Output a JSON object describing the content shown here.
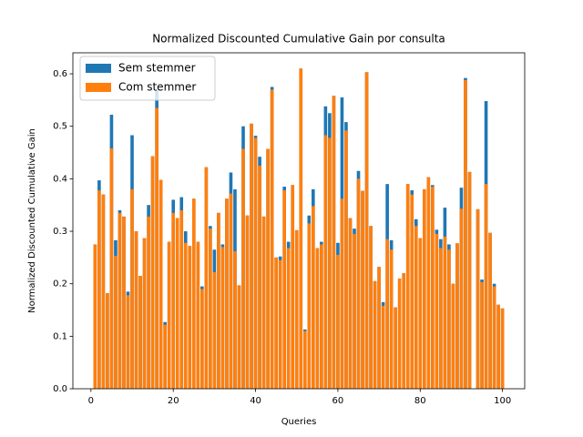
{
  "chart_data": {
    "type": "bar",
    "title": "Normalized Discounted Cumulative Gain por consulta",
    "xlabel": "Queries",
    "ylabel": "Normalized Discounted Cumulative Gain",
    "x": [
      1,
      2,
      3,
      4,
      5,
      6,
      7,
      8,
      9,
      10,
      11,
      12,
      13,
      14,
      15,
      16,
      17,
      18,
      19,
      20,
      21,
      22,
      23,
      24,
      25,
      26,
      27,
      28,
      29,
      30,
      31,
      32,
      33,
      34,
      35,
      36,
      37,
      38,
      39,
      40,
      41,
      42,
      43,
      44,
      45,
      46,
      47,
      48,
      49,
      50,
      51,
      52,
      53,
      54,
      55,
      56,
      57,
      58,
      59,
      60,
      61,
      62,
      63,
      64,
      65,
      66,
      67,
      68,
      69,
      70,
      71,
      72,
      73,
      74,
      75,
      76,
      77,
      78,
      79,
      80,
      81,
      82,
      83,
      84,
      85,
      86,
      87,
      88,
      89,
      90,
      91,
      92,
      93,
      94,
      95,
      96,
      97,
      98,
      99,
      100
    ],
    "series": [
      {
        "name": "Sem stemmer",
        "color": "#1f77b4",
        "values": [
          0.275,
          0.397,
          0.37,
          0.182,
          0.522,
          0.283,
          0.34,
          0.328,
          0.185,
          0.483,
          0.3,
          0.215,
          0.287,
          0.35,
          0.443,
          0.57,
          0.398,
          0.127,
          0.28,
          0.36,
          0.325,
          0.365,
          0.3,
          0.272,
          0.362,
          0.28,
          0.195,
          0.422,
          0.31,
          0.265,
          0.335,
          0.275,
          0.362,
          0.412,
          0.38,
          0.197,
          0.5,
          0.33,
          0.505,
          0.482,
          0.442,
          0.328,
          0.457,
          0.575,
          0.25,
          0.252,
          0.385,
          0.28,
          0.388,
          0.302,
          0.61,
          0.113,
          0.33,
          0.38,
          0.268,
          0.28,
          0.538,
          0.525,
          0.558,
          0.278,
          0.555,
          0.508,
          0.325,
          0.305,
          0.415,
          0.377,
          0.603,
          0.31,
          0.205,
          0.232,
          0.165,
          0.39,
          0.283,
          0.155,
          0.21,
          0.22,
          0.39,
          0.378,
          0.323,
          0.287,
          0.38,
          0.403,
          0.388,
          0.303,
          0.285,
          0.345,
          0.275,
          0.2,
          0.277,
          0.383,
          0.592,
          0.413,
          0,
          0.342,
          0.208,
          0.548,
          0.297,
          0.2,
          0.16,
          0.153
        ]
      },
      {
        "name": "Com stemmer",
        "color": "#ff7f0e",
        "values": [
          0.275,
          0.378,
          0.37,
          0.182,
          0.458,
          0.253,
          0.335,
          0.328,
          0.178,
          0.38,
          0.3,
          0.215,
          0.287,
          0.328,
          0.443,
          0.535,
          0.398,
          0.122,
          0.28,
          0.335,
          0.325,
          0.34,
          0.278,
          0.272,
          0.362,
          0.28,
          0.19,
          0.422,
          0.305,
          0.222,
          0.335,
          0.27,
          0.362,
          0.372,
          0.262,
          0.197,
          0.457,
          0.33,
          0.505,
          0.478,
          0.425,
          0.328,
          0.457,
          0.57,
          0.25,
          0.245,
          0.378,
          0.268,
          0.388,
          0.302,
          0.61,
          0.11,
          0.315,
          0.348,
          0.268,
          0.275,
          0.483,
          0.478,
          0.558,
          0.255,
          0.362,
          0.492,
          0.325,
          0.295,
          0.4,
          0.377,
          0.603,
          0.31,
          0.205,
          0.232,
          0.158,
          0.285,
          0.265,
          0.155,
          0.21,
          0.22,
          0.39,
          0.37,
          0.31,
          0.287,
          0.38,
          0.403,
          0.385,
          0.295,
          0.268,
          0.29,
          0.265,
          0.2,
          0.277,
          0.343,
          0.588,
          0.413,
          0,
          0.342,
          0.203,
          0.39,
          0.297,
          0.195,
          0.16,
          0.153
        ]
      }
    ],
    "xlim": [
      -4.39,
      105.39
    ],
    "ylim": [
      0,
      0.64
    ],
    "xticks": [
      0,
      20,
      40,
      60,
      80,
      100
    ],
    "yticks": [
      {
        "value": 0,
        "label": "0.0"
      },
      0.1,
      0.2,
      0.3,
      0.4,
      0.5,
      0.6
    ],
    "legend": "upper left"
  }
}
